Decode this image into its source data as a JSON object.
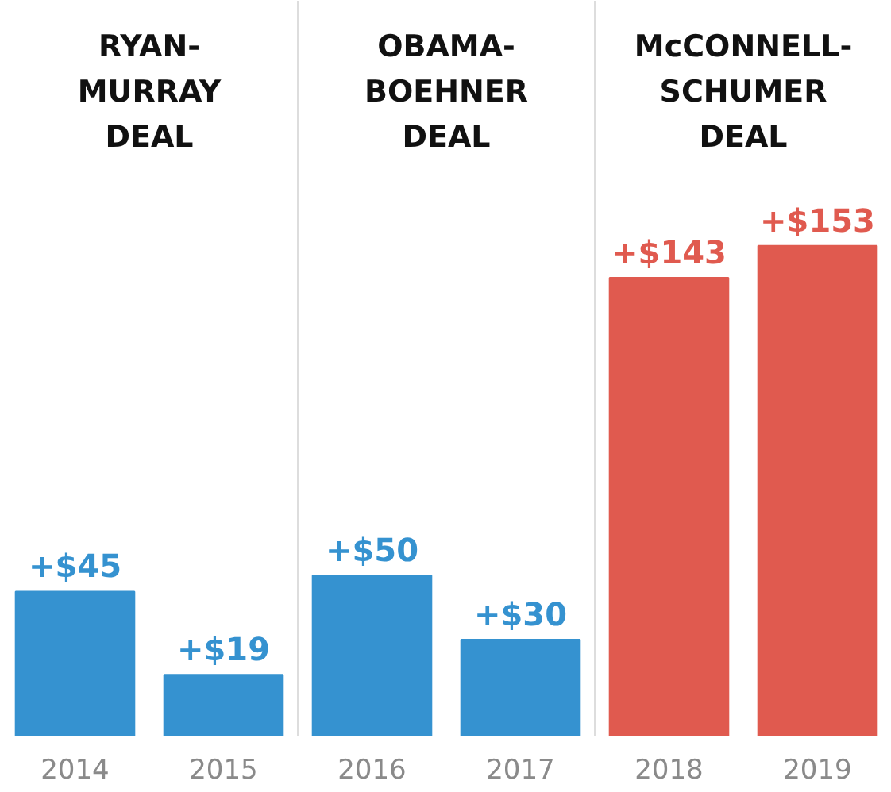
{
  "chart_data": {
    "type": "bar",
    "categories": [
      "2014",
      "2015",
      "2016",
      "2017",
      "2018",
      "2019"
    ],
    "values": [
      45,
      19,
      50,
      30,
      143,
      153
    ],
    "colors": [
      "#3592d0",
      "#3592d0",
      "#3592d0",
      "#3592d0",
      "#e05a4f",
      "#e05a4f"
    ],
    "value_labels": [
      "+$45",
      "+$19",
      "+$50",
      "+$30",
      "+$143",
      "+$153"
    ],
    "annotations": [
      "RYAN-\nMURRAY\nDEAL",
      "OBAMA-\nBOEHNER\nDEAL",
      "McCONNELL-\nSCHUMER\nDEAL"
    ],
    "grid": false
  }
}
